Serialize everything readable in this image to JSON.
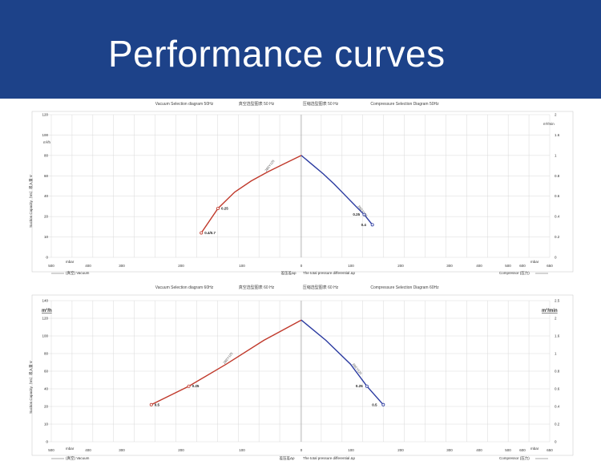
{
  "page": {
    "title": "Performance curves"
  },
  "colors": {
    "banner": "#1d4289",
    "vacuum_line": "#c0392b",
    "compressor_line": "#2a3aa0",
    "grid": "#d9d9d9"
  },
  "chart_data": [
    {
      "type": "line",
      "headers": [
        "Vacuum Selection diagram 50Hz",
        "真空选型图表 50 Hz",
        "压缩选型图表 50 Hz",
        "Compressure Selection Diagram 50Hz"
      ],
      "left_unit": "m³/h",
      "right_unit": "m³/min",
      "ylabel": "Suction Capacity（Vs）吸入量 V",
      "x_ticks_vacuum": [
        "500",
        "400",
        "300",
        "200",
        "100",
        "0"
      ],
      "x_ticks_pressure": [
        "100",
        "200",
        "300",
        "400",
        "500",
        "600",
        "650"
      ],
      "x_unit_left": "mbar",
      "x_unit_right": "mbar",
      "y_ticks_left": [
        "0",
        "10",
        "20",
        "40",
        "60",
        "80",
        "100",
        "120"
      ],
      "y_ticks_right": [
        "0",
        "0.2",
        "0.4",
        "0.6",
        "0.8",
        "1",
        "1.6",
        "2"
      ],
      "center_label": "差压差Δp",
      "center_label_right": "The total pressure differential Δp",
      "footer_left": "(真空) Vacuum",
      "footer_right": "Compressor (压力)",
      "series": [
        {
          "name": "",
          "color": "#c0392b",
          "line_label": "2BEY125",
          "x": [
            -120,
            -100,
            -80,
            -60,
            -40,
            -20,
            0
          ],
          "y": [
            12,
            28,
            44,
            55,
            64,
            72,
            80
          ],
          "points": [
            {
              "x": -120,
              "y": 12,
              "label": "0.4/0.7"
            },
            {
              "x": -100,
              "y": 28,
              "label": "0.25"
            }
          ]
        },
        {
          "name": "",
          "color": "#2a3aa0",
          "line_label": "2BEY125",
          "x": [
            0,
            20,
            40,
            60,
            80,
            100,
            115,
            130
          ],
          "y": [
            80,
            71,
            62,
            52,
            41,
            30,
            22,
            16
          ],
          "points": [
            {
              "x": 115,
              "y": 22,
              "label": "0.25"
            },
            {
              "x": 130,
              "y": 16,
              "label": "0.4"
            }
          ]
        }
      ]
    },
    {
      "type": "line",
      "headers": [
        "Vacuum Selection diagram 60Hz",
        "真空选型图表 60 Hz",
        "压缩选型图表 60 Hz",
        "Compressure Selection Diagram 60Hz"
      ],
      "left_unit": "m³/h",
      "right_unit": "m³/min",
      "ylabel": "Suction Capacity（Vs）吸入量 V",
      "x_ticks_vacuum": [
        "500",
        "400",
        "300",
        "200",
        "100",
        "0"
      ],
      "x_ticks_pressure": [
        "100",
        "200",
        "300",
        "400",
        "500",
        "600",
        "650"
      ],
      "x_unit_left": "mbar",
      "x_unit_right": "mbar",
      "y_ticks_left": [
        "0",
        "10",
        "20",
        "40",
        "60",
        "80",
        "100",
        "120",
        "140"
      ],
      "y_ticks_right": [
        "0",
        "0.2",
        "0.4",
        "0.6",
        "0.8",
        "1",
        "1.6",
        "2",
        "2.5"
      ],
      "center_label": "差压差Δp",
      "center_label_right": "The total pressure differential Δp",
      "footer_left": "(真空) Vacuum",
      "footer_right": "Compressor (压力)",
      "series": [
        {
          "name": "",
          "color": "#c0392b",
          "line_label": "2BEY125",
          "x": [
            -180,
            -135,
            -90,
            -45,
            0
          ],
          "y": [
            22,
            43,
            68,
            95,
            118
          ],
          "points": [
            {
              "x": -180,
              "y": 22,
              "label": "0.5"
            },
            {
              "x": -135,
              "y": 43,
              "label": "0.25"
            }
          ]
        },
        {
          "name": "",
          "color": "#2a3aa0",
          "line_label": "2BEY125",
          "x": [
            0,
            45,
            90,
            120,
            150
          ],
          "y": [
            118,
            95,
            68,
            43,
            22
          ],
          "points": [
            {
              "x": 120,
              "y": 43,
              "label": "0.25"
            },
            {
              "x": 150,
              "y": 22,
              "label": "0.5"
            }
          ]
        }
      ]
    }
  ]
}
